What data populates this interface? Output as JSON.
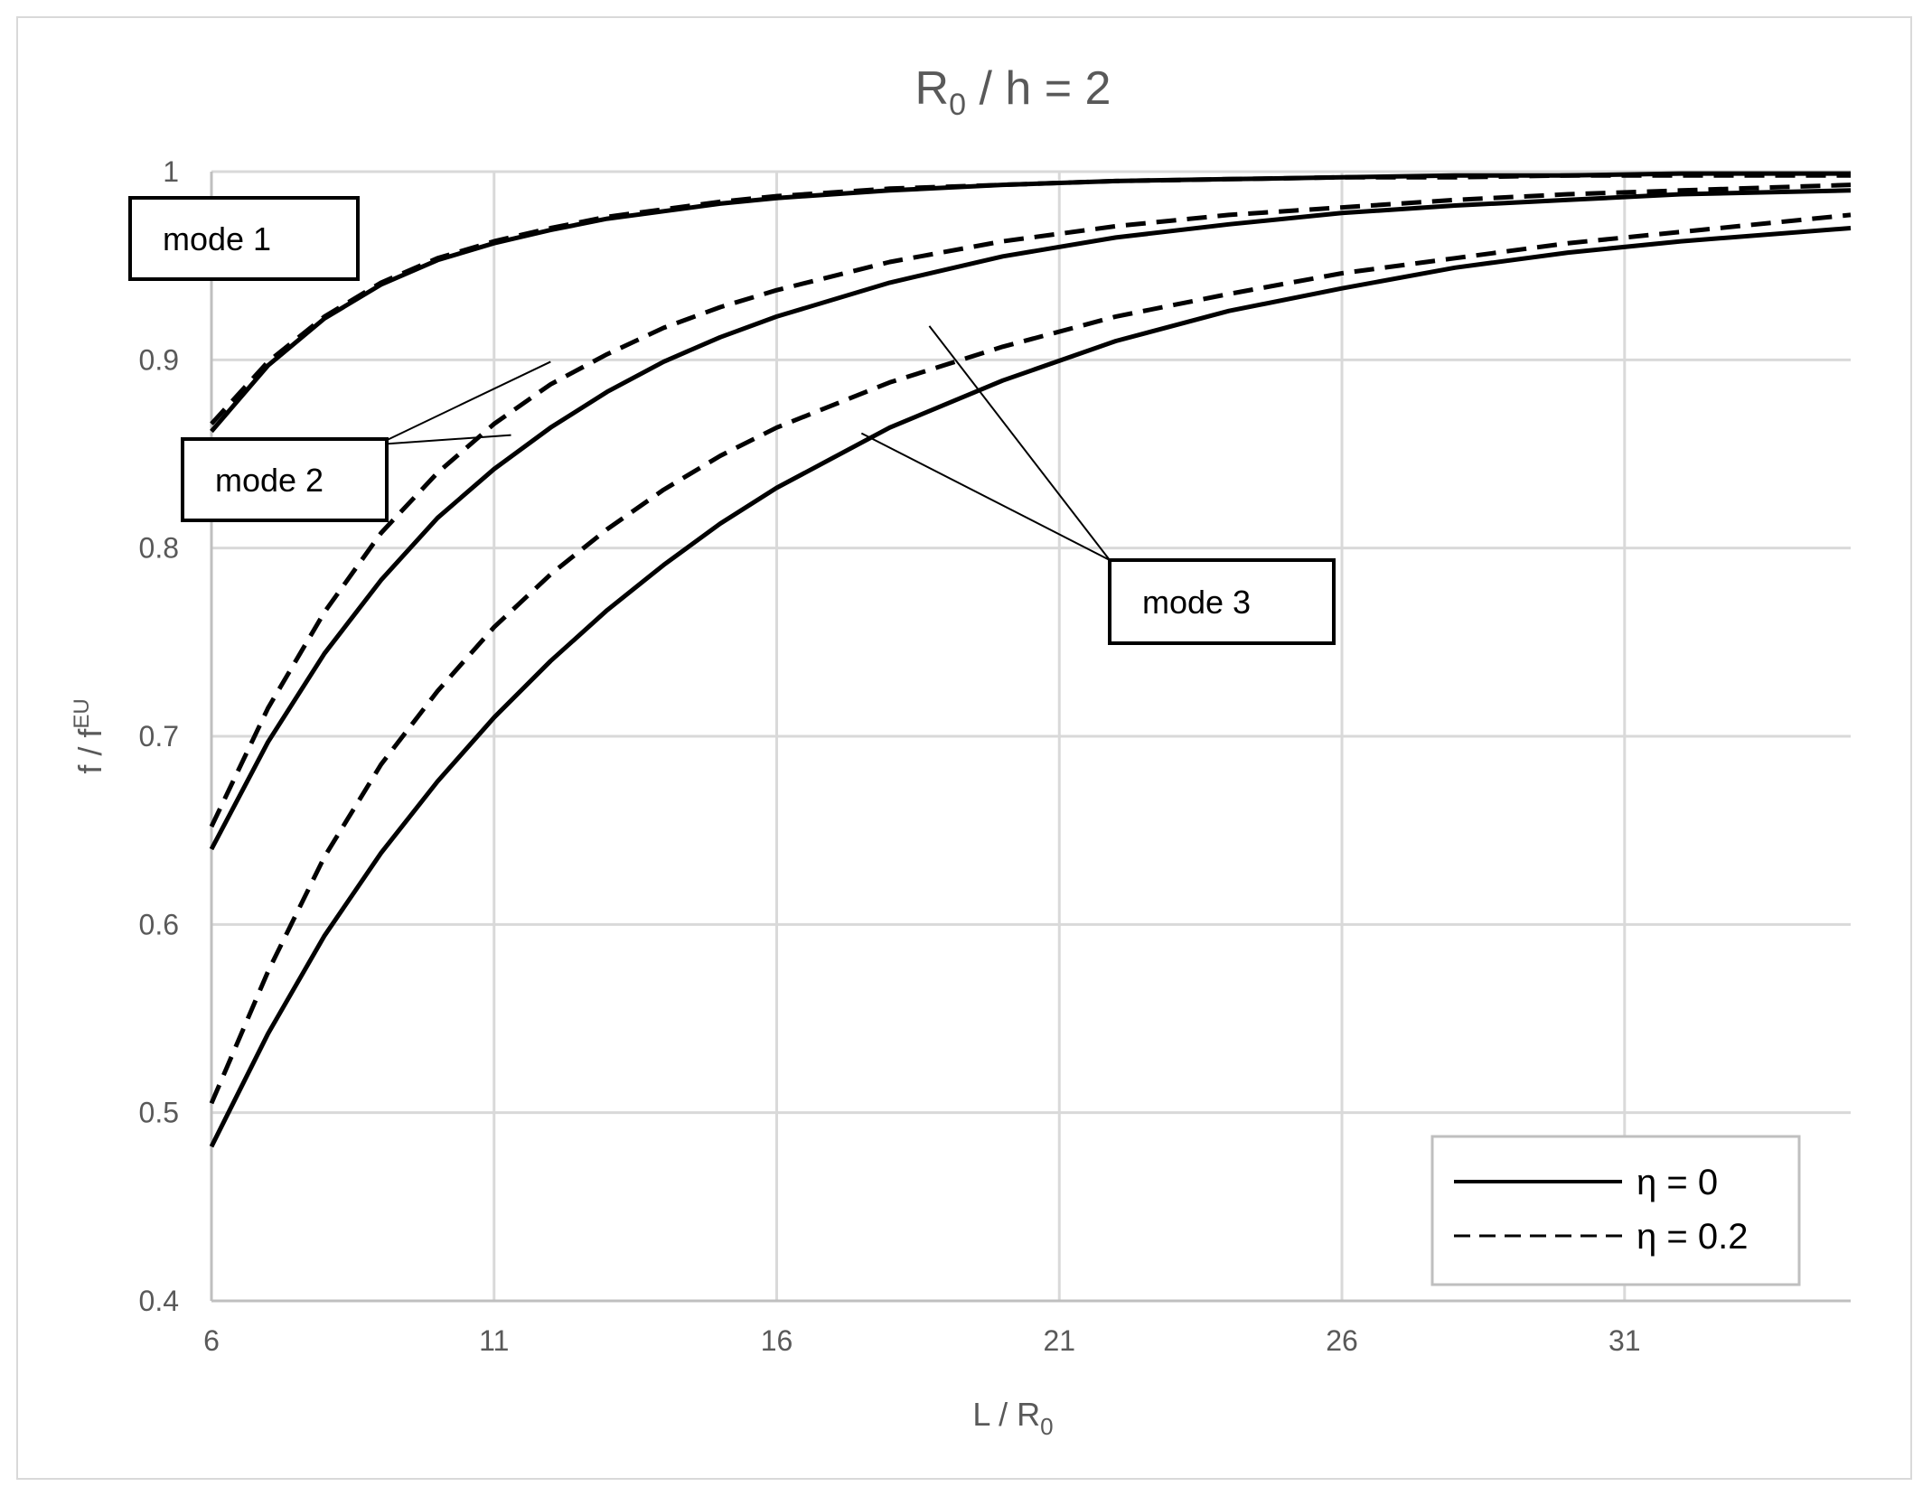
{
  "chart_data": {
    "type": "line",
    "title": "R0 / h = 2",
    "title_parts": {
      "main": "R",
      "sub": "0",
      "rest": " / h = 2"
    },
    "xlabel": "L / R0",
    "xlabel_parts": {
      "main": "L / R",
      "sub": "0"
    },
    "ylabel": "f / fEU",
    "ylabel_parts": {
      "main": "f / f",
      "sup": "EU"
    },
    "xlim": [
      6,
      35
    ],
    "ylim": [
      0.4,
      1.0
    ],
    "xticks": [
      6,
      11,
      16,
      21,
      26,
      31
    ],
    "yticks": [
      0.4,
      0.5,
      0.6,
      0.7,
      0.8,
      0.9,
      1.0
    ],
    "ytick_labels": [
      "0.4",
      "0.5",
      "0.6",
      "0.7",
      "0.8",
      "0.9",
      "1"
    ],
    "grid": true,
    "legend_position": "bottom-right",
    "legend": [
      {
        "label": "η = 0",
        "style": "solid"
      },
      {
        "label": "η = 0.2",
        "style": "dashed"
      }
    ],
    "x": [
      6,
      7,
      8,
      9,
      10,
      11,
      12,
      13,
      14,
      15,
      16,
      18,
      20,
      22,
      24,
      26,
      28,
      30,
      32,
      35
    ],
    "series": [
      {
        "mode": "mode 1",
        "style": "solid",
        "values": [
          0.862,
          0.897,
          0.922,
          0.94,
          0.953,
          0.962,
          0.969,
          0.975,
          0.979,
          0.983,
          0.986,
          0.99,
          0.993,
          0.995,
          0.996,
          0.997,
          0.998,
          0.998,
          0.999,
          0.999
        ]
      },
      {
        "mode": "mode 1",
        "style": "dashed",
        "values": [
          0.866,
          0.899,
          0.923,
          0.941,
          0.954,
          0.963,
          0.97,
          0.976,
          0.98,
          0.984,
          0.987,
          0.991,
          0.993,
          0.995,
          0.996,
          0.997,
          0.997,
          0.998,
          0.998,
          0.998
        ]
      },
      {
        "mode": "mode 2",
        "style": "solid",
        "values": [
          0.64,
          0.697,
          0.744,
          0.783,
          0.816,
          0.842,
          0.864,
          0.883,
          0.899,
          0.912,
          0.923,
          0.941,
          0.955,
          0.965,
          0.972,
          0.978,
          0.982,
          0.985,
          0.988,
          0.99
        ]
      },
      {
        "mode": "mode 2",
        "style": "dashed",
        "values": [
          0.652,
          0.715,
          0.766,
          0.808,
          0.84,
          0.866,
          0.887,
          0.903,
          0.917,
          0.928,
          0.937,
          0.952,
          0.963,
          0.971,
          0.977,
          0.981,
          0.985,
          0.988,
          0.99,
          0.993
        ]
      },
      {
        "mode": "mode 3",
        "style": "solid",
        "values": [
          0.482,
          0.542,
          0.594,
          0.638,
          0.676,
          0.71,
          0.74,
          0.767,
          0.791,
          0.813,
          0.832,
          0.864,
          0.889,
          0.91,
          0.926,
          0.938,
          0.949,
          0.957,
          0.963,
          0.97
        ]
      },
      {
        "mode": "mode 3",
        "style": "dashed",
        "values": [
          0.505,
          0.575,
          0.636,
          0.685,
          0.724,
          0.758,
          0.786,
          0.81,
          0.831,
          0.849,
          0.864,
          0.888,
          0.907,
          0.923,
          0.935,
          0.946,
          0.954,
          0.962,
          0.968,
          0.977
        ]
      }
    ],
    "callouts": [
      {
        "text": "mode 1",
        "targets": []
      },
      {
        "text": "mode 2",
        "targets": [
          [
            12,
            0.899
          ],
          [
            11.3,
            0.86
          ]
        ]
      },
      {
        "text": "mode 3",
        "targets": [
          [
            18.7,
            0.918
          ],
          [
            17.5,
            0.861
          ]
        ]
      }
    ]
  }
}
